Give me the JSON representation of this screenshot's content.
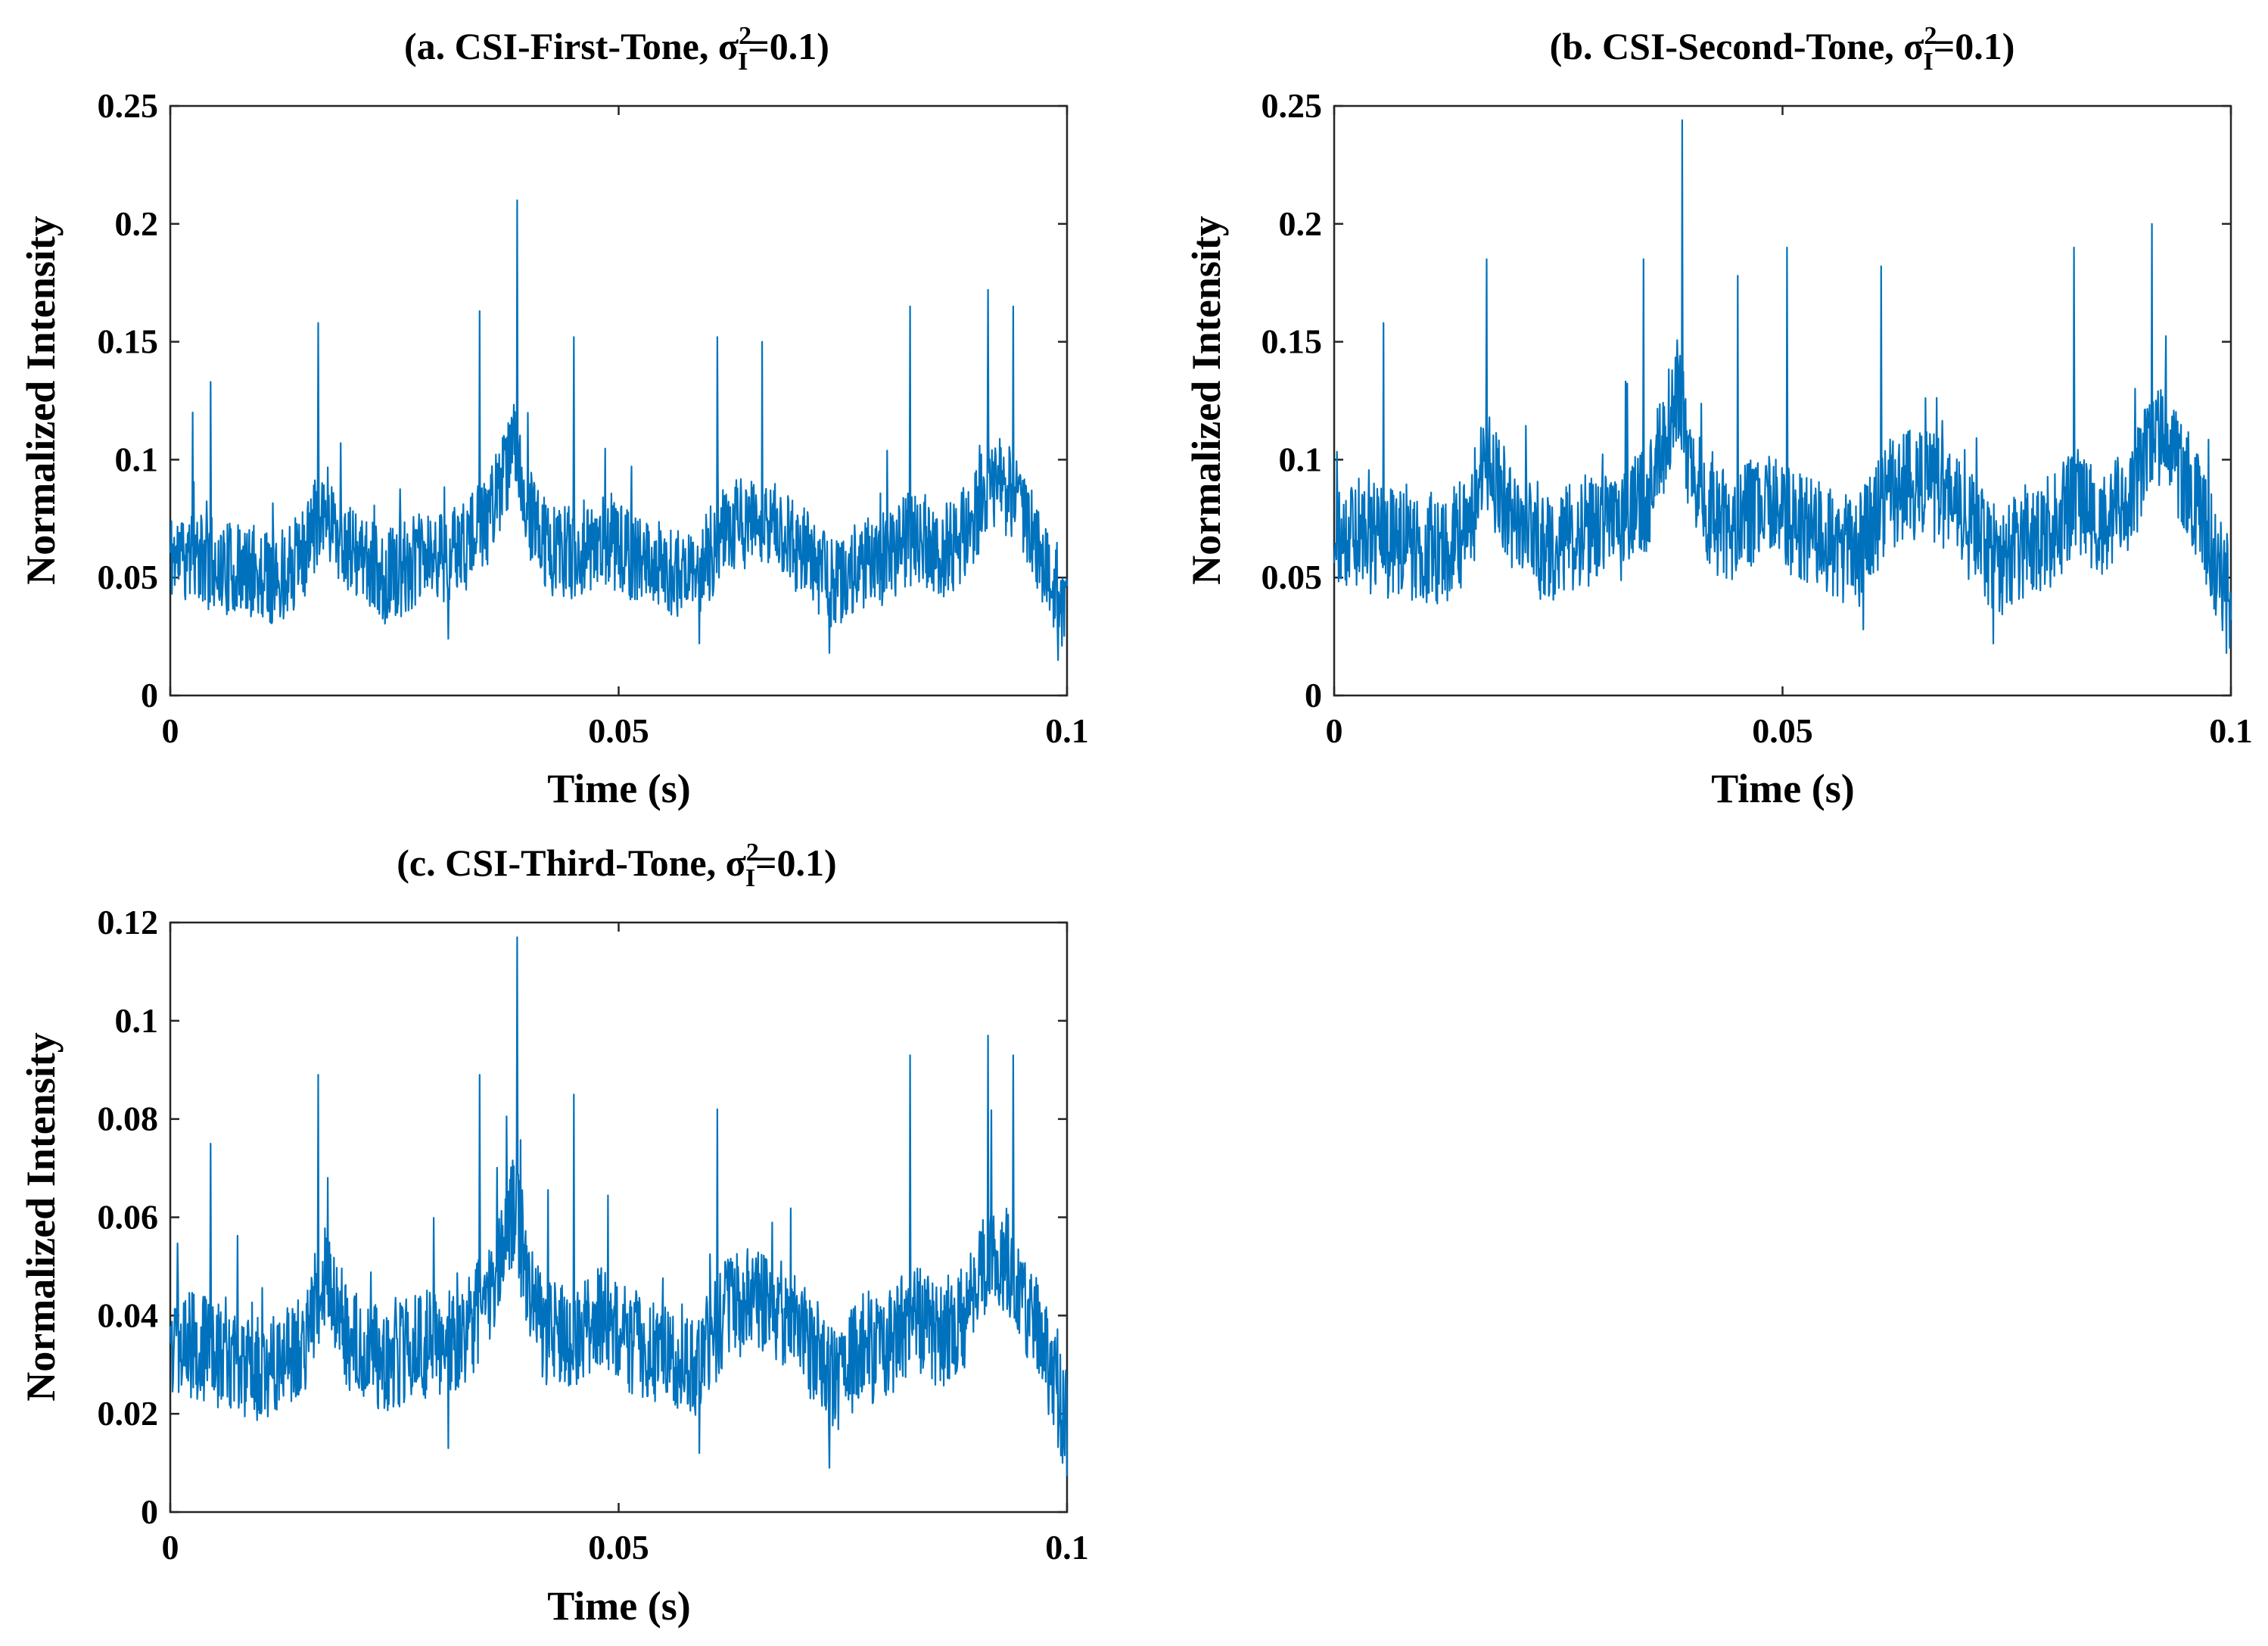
{
  "figure": {
    "panels_count": 3
  },
  "chart_data": [
    {
      "type": "line",
      "title_prefix": "(a. CSI-First-Tone, ",
      "title_sigma": "σ",
      "title_sup": "2",
      "title_sub": "I",
      "title_suffix": "=0.1)",
      "xlabel": "Time (s)",
      "ylabel": "Normalized Intensity",
      "xlim": [
        0,
        0.1
      ],
      "ylim": [
        0,
        0.25
      ],
      "xticks": [
        0,
        0.05,
        0.1
      ],
      "xtick_labels": [
        "0",
        "0.05",
        "0.1"
      ],
      "yticks": [
        0,
        0.05,
        0.1,
        0.15,
        0.2,
        0.25
      ],
      "ytick_labels": [
        "0",
        "0.05",
        "0.1",
        "0.15",
        "0.2",
        "0.25"
      ],
      "series": [
        {
          "name": "Normalized Intensity",
          "color": "#0072BD",
          "envelope": {
            "x": [
              0,
              0.003,
              0.008,
              0.012,
              0.015,
              0.017,
              0.02,
              0.024,
              0.028,
              0.032,
              0.035,
              0.0375,
              0.0385,
              0.0395,
              0.042,
              0.045,
              0.048,
              0.052,
              0.055,
              0.058,
              0.062,
              0.065,
              0.068,
              0.071,
              0.074,
              0.077,
              0.08,
              0.083,
              0.086,
              0.089,
              0.0915,
              0.094,
              0.097,
              0.1
            ],
            "y": [
              0.06,
              0.058,
              0.052,
              0.05,
              0.06,
              0.082,
              0.06,
              0.05,
              0.058,
              0.06,
              0.072,
              0.095,
              0.11,
              0.08,
              0.062,
              0.06,
              0.066,
              0.058,
              0.055,
              0.048,
              0.07,
              0.075,
              0.07,
              0.06,
              0.046,
              0.055,
              0.058,
              0.068,
              0.06,
              0.07,
              0.092,
              0.085,
              0.06,
              0.032
            ]
          },
          "peaks": [
            {
              "x": 0.0387,
              "y": 0.21
            },
            {
              "x": 0.0912,
              "y": 0.172
            },
            {
              "x": 0.0165,
              "y": 0.158
            },
            {
              "x": 0.0345,
              "y": 0.163
            },
            {
              "x": 0.0825,
              "y": 0.165
            },
            {
              "x": 0.094,
              "y": 0.165
            },
            {
              "x": 0.045,
              "y": 0.152
            },
            {
              "x": 0.061,
              "y": 0.152
            },
            {
              "x": 0.066,
              "y": 0.15
            },
            {
              "x": 0.0045,
              "y": 0.133
            },
            {
              "x": 0.0025,
              "y": 0.12
            }
          ],
          "troughs": [
            {
              "x": 0.099,
              "y": 0.015
            },
            {
              "x": 0.0735,
              "y": 0.018
            },
            {
              "x": 0.059,
              "y": 0.022
            },
            {
              "x": 0.031,
              "y": 0.024
            }
          ],
          "noise_amplitude": 0.02,
          "seed": 11
        }
      ]
    },
    {
      "type": "line",
      "title_prefix": "(b. CSI-Second-Tone, ",
      "title_sigma": "σ",
      "title_sup": "2",
      "title_sub": "I",
      "title_suffix": "=0.1)",
      "xlabel": "Time (s)",
      "ylabel": "Normalized Intensity",
      "xlim": [
        0,
        0.1
      ],
      "ylim": [
        0,
        0.25
      ],
      "xticks": [
        0,
        0.05,
        0.1
      ],
      "xtick_labels": [
        "0",
        "0.05",
        "0.1"
      ],
      "yticks": [
        0,
        0.05,
        0.1,
        0.15,
        0.2,
        0.25
      ],
      "ytick_labels": [
        "0",
        "0.05",
        "0.1",
        "0.15",
        "0.2",
        "0.25"
      ],
      "series": [
        {
          "name": "Normalized Intensity",
          "color": "#0072BD",
          "envelope": {
            "x": [
              0,
              0.003,
              0.008,
              0.012,
              0.015,
              0.017,
              0.02,
              0.024,
              0.028,
              0.032,
              0.035,
              0.0375,
              0.0385,
              0.0395,
              0.042,
              0.045,
              0.048,
              0.052,
              0.055,
              0.058,
              0.062,
              0.065,
              0.068,
              0.071,
              0.074,
              0.077,
              0.08,
              0.083,
              0.086,
              0.089,
              0.0915,
              0.094,
              0.097,
              0.1
            ],
            "y": [
              0.07,
              0.068,
              0.062,
              0.06,
              0.072,
              0.1,
              0.072,
              0.062,
              0.07,
              0.072,
              0.085,
              0.115,
              0.132,
              0.096,
              0.075,
              0.072,
              0.08,
              0.072,
              0.068,
              0.058,
              0.085,
              0.09,
              0.085,
              0.072,
              0.056,
              0.066,
              0.07,
              0.082,
              0.072,
              0.085,
              0.11,
              0.1,
              0.072,
              0.04
            ]
          },
          "peaks": [
            {
              "x": 0.0388,
              "y": 0.244
            },
            {
              "x": 0.0912,
              "y": 0.2
            },
            {
              "x": 0.017,
              "y": 0.185
            },
            {
              "x": 0.0345,
              "y": 0.185
            },
            {
              "x": 0.0825,
              "y": 0.19
            },
            {
              "x": 0.0505,
              "y": 0.19
            },
            {
              "x": 0.061,
              "y": 0.182
            },
            {
              "x": 0.0055,
              "y": 0.158
            },
            {
              "x": 0.045,
              "y": 0.178
            }
          ],
          "troughs": [
            {
              "x": 0.0995,
              "y": 0.018
            },
            {
              "x": 0.0735,
              "y": 0.022
            },
            {
              "x": 0.059,
              "y": 0.028
            }
          ],
          "noise_amplitude": 0.024,
          "seed": 29
        }
      ]
    },
    {
      "type": "line",
      "title_prefix": "(c. CSI-Third-Tone, ",
      "title_sigma": "σ",
      "title_sup": "2",
      "title_sub": "I",
      "title_suffix": "=0.1)",
      "xlabel": "Time (s)",
      "ylabel": "Normalized Intensity",
      "xlim": [
        0,
        0.1
      ],
      "ylim": [
        0,
        0.12
      ],
      "xticks": [
        0,
        0.05,
        0.1
      ],
      "xtick_labels": [
        "0",
        "0.05",
        "0.1"
      ],
      "yticks": [
        0,
        0.02,
        0.04,
        0.06,
        0.08,
        0.1,
        0.12
      ],
      "ytick_labels": [
        "0",
        "0.02",
        "0.04",
        "0.06",
        "0.08",
        "0.1",
        "0.12"
      ],
      "series": [
        {
          "name": "Normalized Intensity",
          "color": "#0072BD",
          "envelope": {
            "x": [
              0,
              0.003,
              0.008,
              0.012,
              0.015,
              0.017,
              0.02,
              0.024,
              0.028,
              0.032,
              0.035,
              0.0375,
              0.0385,
              0.0395,
              0.042,
              0.045,
              0.048,
              0.052,
              0.055,
              0.058,
              0.062,
              0.065,
              0.068,
              0.071,
              0.074,
              0.077,
              0.08,
              0.083,
              0.086,
              0.089,
              0.0915,
              0.094,
              0.097,
              0.1
            ],
            "y": [
              0.035,
              0.034,
              0.03,
              0.029,
              0.035,
              0.048,
              0.035,
              0.03,
              0.034,
              0.035,
              0.042,
              0.056,
              0.064,
              0.047,
              0.036,
              0.035,
              0.039,
              0.034,
              0.032,
              0.028,
              0.041,
              0.044,
              0.041,
              0.035,
              0.027,
              0.032,
              0.034,
              0.04,
              0.035,
              0.041,
              0.054,
              0.05,
              0.035,
              0.018
            ]
          },
          "peaks": [
            {
              "x": 0.0387,
              "y": 0.117
            },
            {
              "x": 0.0912,
              "y": 0.097
            },
            {
              "x": 0.0165,
              "y": 0.089
            },
            {
              "x": 0.0345,
              "y": 0.089
            },
            {
              "x": 0.0825,
              "y": 0.093
            },
            {
              "x": 0.094,
              "y": 0.093
            },
            {
              "x": 0.045,
              "y": 0.085
            },
            {
              "x": 0.061,
              "y": 0.082
            },
            {
              "x": 0.0045,
              "y": 0.075
            }
          ],
          "troughs": [
            {
              "x": 0.0995,
              "y": 0.01
            },
            {
              "x": 0.0735,
              "y": 0.009
            },
            {
              "x": 0.059,
              "y": 0.012
            },
            {
              "x": 0.031,
              "y": 0.013
            }
          ],
          "noise_amplitude": 0.011,
          "seed": 47
        }
      ]
    }
  ]
}
